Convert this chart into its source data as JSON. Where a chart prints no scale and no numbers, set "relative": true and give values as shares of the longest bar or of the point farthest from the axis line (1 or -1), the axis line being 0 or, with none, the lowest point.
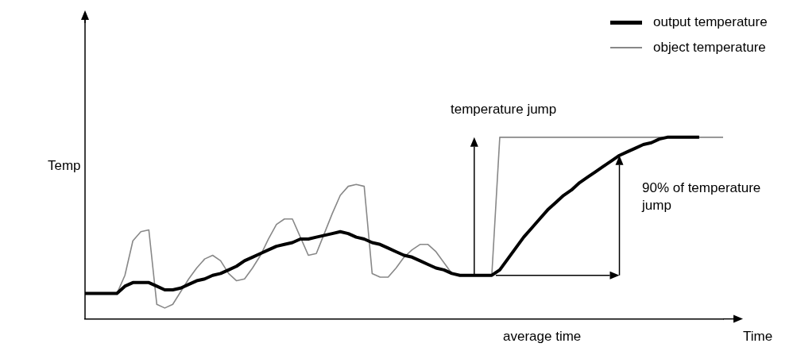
{
  "chart_data": {
    "type": "line",
    "relative": true,
    "xlabel": "Time",
    "ylabel": "Temp",
    "legend": "top right",
    "marker": "none",
    "annotations": [
      "temperature jump",
      "90% of temperature jump",
      "average time"
    ],
    "categories": [
      null,
      null,
      null,
      null,
      null,
      null,
      null,
      null,
      null,
      null,
      null,
      null,
      null,
      null,
      null,
      null,
      null,
      null,
      null,
      null,
      null,
      null,
      null,
      null,
      null,
      null,
      null,
      null,
      null,
      null,
      null,
      null,
      null,
      null,
      null,
      null,
      null,
      null,
      null,
      null,
      null,
      null,
      null,
      null,
      null,
      null,
      null,
      null,
      null,
      null,
      null,
      null,
      null,
      null,
      null,
      null,
      null,
      null,
      null,
      null,
      null,
      null,
      null,
      null,
      null,
      null,
      null,
      null,
      null,
      null,
      null,
      null,
      null,
      null,
      null,
      null,
      null,
      null,
      null,
      null,
      null
    ],
    "series": [
      {
        "name": "output temperature",
        "color": "#000000",
        "values": [
          0.14,
          0.14,
          0.14,
          0.14,
          0.14,
          0.18,
          0.2,
          0.2,
          0.2,
          0.18,
          0.16,
          0.16,
          0.17,
          0.19,
          0.21,
          0.22,
          0.24,
          0.25,
          0.27,
          0.29,
          0.32,
          0.34,
          0.36,
          0.38,
          0.4,
          0.41,
          0.42,
          0.44,
          0.44,
          0.45,
          0.46,
          0.47,
          0.48,
          0.47,
          0.45,
          0.44,
          0.42,
          0.41,
          0.39,
          0.37,
          0.35,
          0.34,
          0.32,
          0.3,
          0.28,
          0.27,
          0.25,
          0.24,
          0.24,
          0.24,
          0.24,
          0.24,
          0.27,
          0.33,
          0.39,
          0.45,
          0.5,
          0.55,
          0.6,
          0.64,
          0.68,
          0.71,
          0.75,
          0.78,
          0.81,
          0.84,
          0.87,
          0.9,
          0.92,
          0.94,
          0.96,
          0.97,
          0.99,
          1,
          1,
          1,
          1,
          1,
          null,
          null,
          null
        ]
      },
      {
        "name": "object temperature",
        "color": "#888888",
        "values": [
          0.14,
          0.14,
          0.14,
          0.14,
          0.14,
          0.24,
          0.43,
          0.48,
          0.49,
          0.08,
          0.06,
          0.08,
          0.15,
          0.22,
          0.28,
          0.33,
          0.35,
          0.32,
          0.25,
          0.21,
          0.22,
          0.28,
          0.35,
          0.44,
          0.52,
          0.55,
          0.55,
          0.45,
          0.35,
          0.36,
          0.47,
          0.58,
          0.68,
          0.73,
          0.74,
          0.73,
          0.25,
          0.23,
          0.23,
          0.28,
          0.34,
          0.38,
          0.41,
          0.41,
          0.37,
          0.31,
          0.25,
          0.24,
          0.24,
          0.24,
          0.24,
          0.24,
          1,
          1,
          1,
          1,
          1,
          1,
          1,
          1,
          1,
          1,
          1,
          1,
          1,
          1,
          1,
          1,
          1,
          1,
          1,
          1,
          1,
          1,
          1,
          1,
          1,
          1,
          1,
          1,
          1
        ]
      }
    ]
  }
}
